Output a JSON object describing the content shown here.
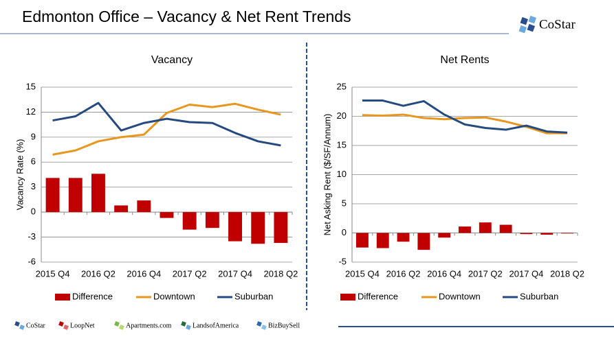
{
  "header": {
    "title": "Edmonton Office – Vacancy & Net Rent Trends",
    "logo": "CoStar"
  },
  "footer": {
    "brands": [
      "CoStar",
      "LoopNet",
      "Apartments.com",
      "LandsofAmerica",
      "BizBuySell"
    ]
  },
  "chart_data": [
    {
      "type": "combo",
      "title": "Vacancy",
      "y_label": "Vacancy Rate (%)",
      "categories": [
        "2015 Q4",
        null,
        "2016 Q2",
        null,
        "2016 Q4",
        null,
        "2017 Q2",
        null,
        "2017 Q4",
        null,
        "2018 Q2"
      ],
      "series": [
        {
          "name": "Difference",
          "type": "bar",
          "color": "#c00000",
          "values": [
            4.1,
            4.1,
            4.6,
            0.8,
            1.4,
            -0.7,
            -2.1,
            -1.9,
            -3.5,
            -3.8,
            -3.7
          ]
        },
        {
          "name": "Downtown",
          "type": "line",
          "color": "#e8961e",
          "values": [
            6.9,
            7.4,
            8.5,
            9.0,
            9.3,
            11.9,
            12.9,
            12.6,
            13.0,
            12.3,
            11.7
          ]
        },
        {
          "name": "Suburban",
          "type": "line",
          "color": "#254a80",
          "values": [
            11.0,
            11.5,
            13.1,
            9.8,
            10.7,
            11.2,
            10.8,
            10.7,
            9.5,
            8.5,
            8.0
          ]
        }
      ],
      "ylim": [
        -6,
        15
      ],
      "yticks": [
        -6,
        -3,
        0,
        3,
        6,
        9,
        12,
        15
      ],
      "grid": true
    },
    {
      "type": "combo",
      "title": "Net Rents",
      "y_label": "Net Asking Rent ($/SF/Annum)",
      "categories": [
        "2015 Q4",
        null,
        "2016 Q2",
        null,
        "2016 Q4",
        null,
        "2017 Q2",
        null,
        "2017 Q4",
        null,
        "2018 Q2"
      ],
      "series": [
        {
          "name": "Difference",
          "type": "bar",
          "color": "#c00000",
          "values": [
            -2.5,
            -2.6,
            -1.5,
            -2.9,
            -0.8,
            1.1,
            1.8,
            1.4,
            -0.2,
            -0.3,
            -0.1
          ]
        },
        {
          "name": "Downtown",
          "type": "line",
          "color": "#e8961e",
          "values": [
            20.2,
            20.1,
            20.3,
            19.7,
            19.5,
            19.7,
            19.8,
            19.1,
            18.2,
            17.1,
            17.1
          ]
        },
        {
          "name": "Suburban",
          "type": "line",
          "color": "#254a80",
          "values": [
            22.7,
            22.7,
            21.8,
            22.6,
            20.3,
            18.6,
            18.0,
            17.7,
            18.4,
            17.4,
            17.2
          ]
        }
      ],
      "ylim": [
        -5,
        25
      ],
      "yticks": [
        -5,
        0,
        5,
        10,
        15,
        20,
        25
      ],
      "grid": true
    }
  ]
}
